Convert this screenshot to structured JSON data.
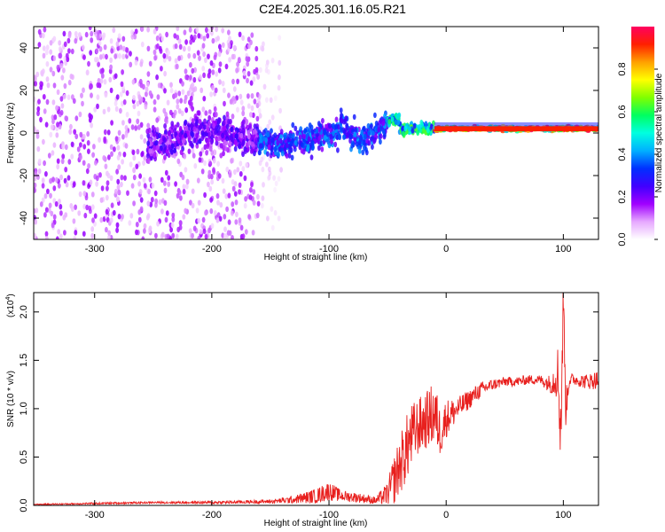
{
  "figure_title": "C2E4.2025.301.16.05.R21",
  "chart_data": [
    {
      "type": "heatmap",
      "xlabel": "Height of straight line (km)",
      "ylabel": "Frequency (Hz)",
      "xlim": [
        -352,
        130
      ],
      "ylim": [
        -50,
        50
      ],
      "x_ticks": [
        -300,
        -200,
        -100,
        0,
        100
      ],
      "y_ticks": [
        -40,
        -20,
        0,
        20,
        40
      ],
      "colorbar": {
        "label": "Normalized spectral amplitude",
        "range": [
          0,
          1
        ],
        "ticks": [
          "0.0",
          "0.2",
          "0.4",
          "0.6",
          "0.8"
        ],
        "tick_values": [
          0.0,
          0.2,
          0.4,
          0.6,
          0.8
        ],
        "colors": [
          "#ffffff",
          "#e6a8ff",
          "#a000ff",
          "#4000ff",
          "#0030ff",
          "#00b0ff",
          "#00ffe0",
          "#00ff60",
          "#80ff00",
          "#ffff00",
          "#ffa000",
          "#ff2000",
          "#ff0060"
        ]
      },
      "regions": [
        {
          "x_range": [
            -352,
            -160
          ],
          "freq_spread": 50,
          "amplitude": 0.12,
          "density": "high"
        },
        {
          "x_range": [
            -160,
            -140
          ],
          "freq_spread": 45,
          "amplitude": 0.06,
          "density": "sparse"
        },
        {
          "x_range": [
            -255,
            -160
          ],
          "freq_spread": 12,
          "amplitude": 0.22,
          "density": "band"
        },
        {
          "x_range": [
            -160,
            -50
          ],
          "freq_spread": 10,
          "amplitude": 0.35,
          "density": "band"
        },
        {
          "x_range": [
            -50,
            -10
          ],
          "freq_spread": 4,
          "amplitude": 0.55,
          "density": "band"
        },
        {
          "x_range": [
            -10,
            130
          ],
          "freq_spread": 2,
          "amplitude": 0.9,
          "density": "line"
        }
      ]
    },
    {
      "type": "line",
      "xlabel": "Height of straight line (km)",
      "ylabel": "SNR (10 * v/v)",
      "y_multiplier": "(x10",
      "y_multiplier_exp": "4",
      "y_multiplier_close": ")",
      "xlim": [
        -352,
        130
      ],
      "ylim": [
        0,
        2.2
      ],
      "x_ticks": [
        -300,
        -200,
        -100,
        0,
        100
      ],
      "y_ticks": [
        "0.0",
        "0.5",
        "1.0",
        "1.5",
        "2.0"
      ],
      "y_tick_values": [
        0.0,
        0.5,
        1.0,
        1.5,
        2.0
      ],
      "grid": false,
      "series": [
        {
          "color": "#e8201e",
          "x": [
            -352,
            -300,
            -250,
            -200,
            -150,
            -130,
            -110,
            -100,
            -90,
            -75,
            -60,
            -50,
            -45,
            -40,
            -35,
            -30,
            -25,
            -20,
            -15,
            -10,
            -5,
            0,
            10,
            20,
            30,
            40,
            50,
            60,
            70,
            80,
            90,
            95,
            98,
            100,
            102,
            105,
            110,
            120,
            130
          ],
          "y": [
            0.01,
            0.02,
            0.03,
            0.03,
            0.04,
            0.06,
            0.1,
            0.15,
            0.1,
            0.08,
            0.05,
            0.12,
            0.25,
            0.4,
            0.55,
            0.7,
            0.8,
            0.85,
            0.9,
            0.95,
            0.75,
            0.9,
            1.0,
            1.1,
            1.2,
            1.25,
            1.28,
            1.28,
            1.3,
            1.3,
            1.25,
            1.4,
            0.8,
            2.2,
            1.0,
            1.3,
            1.3,
            1.28,
            1.3
          ],
          "noise": [
            0.005,
            0.01,
            0.01,
            0.015,
            0.02,
            0.04,
            0.08,
            0.1,
            0.06,
            0.05,
            0.04,
            0.12,
            0.25,
            0.3,
            0.35,
            0.35,
            0.3,
            0.3,
            0.3,
            0.35,
            0.25,
            0.2,
            0.12,
            0.1,
            0.08,
            0.06,
            0.05,
            0.05,
            0.05,
            0.05,
            0.1,
            0.3,
            0.5,
            0.3,
            0.2,
            0.08,
            0.06,
            0.08,
            0.1
          ]
        }
      ]
    }
  ]
}
